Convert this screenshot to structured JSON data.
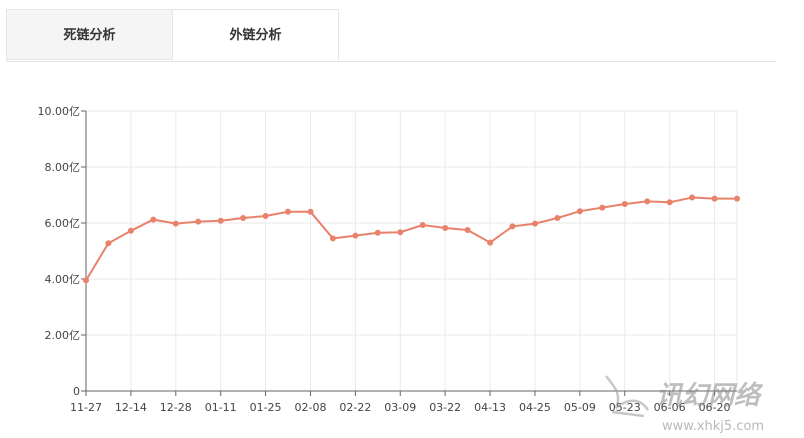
{
  "tabs": [
    {
      "label": "死链分析",
      "active": false
    },
    {
      "label": "外链分析",
      "active": true
    }
  ],
  "chart_data": {
    "type": "line",
    "color": "#e8826b",
    "y_tick_labels": [
      "0",
      "2.00亿",
      "4.00亿",
      "6.00亿",
      "8.00亿",
      "10.00亿"
    ],
    "ylim": [
      0,
      10
    ],
    "x_tick_labels": [
      "11-27",
      "12-14",
      "12-28",
      "01-11",
      "01-25",
      "02-08",
      "02-22",
      "03-09",
      "03-22",
      "04-13",
      "04-25",
      "05-09",
      "05-23",
      "06-06",
      "06-20"
    ],
    "values": [
      3.95,
      5.28,
      5.72,
      6.12,
      5.98,
      6.05,
      6.08,
      6.18,
      6.25,
      6.4,
      6.4,
      5.45,
      5.55,
      5.65,
      5.67,
      5.93,
      5.82,
      5.75,
      5.3,
      5.88,
      5.98,
      6.18,
      6.42,
      6.55,
      6.68,
      6.77,
      6.74,
      6.91,
      6.87,
      6.87
    ]
  },
  "watermark": {
    "text": "讯幻网络",
    "url": "www.xhkj5.com"
  }
}
